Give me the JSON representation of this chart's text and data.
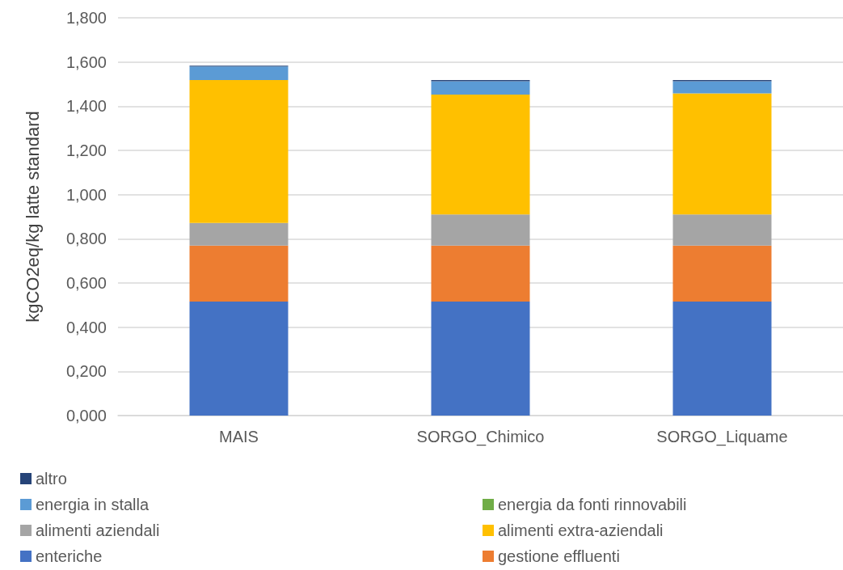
{
  "chart_data": {
    "type": "bar",
    "stacked": true,
    "ylabel": "kgCO2eq/kg latte standard",
    "categories": [
      "MAIS",
      "SORGO_Chimico",
      "SORGO_Liquame"
    ],
    "series": [
      {
        "name": "enteriche",
        "color": "#4472c4",
        "values": [
          0.516,
          0.516,
          0.516
        ]
      },
      {
        "name": "gestione effluenti",
        "color": "#ed7d31",
        "values": [
          0.253,
          0.253,
          0.253
        ]
      },
      {
        "name": "alimenti aziendali",
        "color": "#a5a5a5",
        "values": [
          0.103,
          0.141,
          0.141
        ]
      },
      {
        "name": "alimenti extra-aziendali",
        "color": "#ffc000",
        "values": [
          0.646,
          0.542,
          0.548
        ]
      },
      {
        "name": "energia in stalla",
        "color": "#5b9bd5",
        "values": [
          0.062,
          0.061,
          0.055
        ]
      },
      {
        "name": "energia da fonti rinnovabili",
        "color": "#70ad47",
        "values": [
          0,
          0,
          0
        ]
      },
      {
        "name": "altro",
        "color": "#264478",
        "values": [
          0.003,
          0.005,
          0.005
        ]
      }
    ],
    "ylim": [
      0,
      1.8
    ],
    "yticks": [
      {
        "value": 0,
        "label": "0,000"
      },
      {
        "value": 0.2,
        "label": "0,200"
      },
      {
        "value": 0.4,
        "label": "0,400"
      },
      {
        "value": 0.6,
        "label": "0,600"
      },
      {
        "value": 0.8,
        "label": "0,800"
      },
      {
        "value": 1,
        "label": "1,000"
      },
      {
        "value": 1.2,
        "label": "1,200"
      },
      {
        "value": 1.4,
        "label": "1,400"
      },
      {
        "value": 1.6,
        "label": "1,600"
      },
      {
        "value": 1.8,
        "label": "1,800"
      }
    ],
    "grid": "y",
    "legend": "bottom"
  }
}
